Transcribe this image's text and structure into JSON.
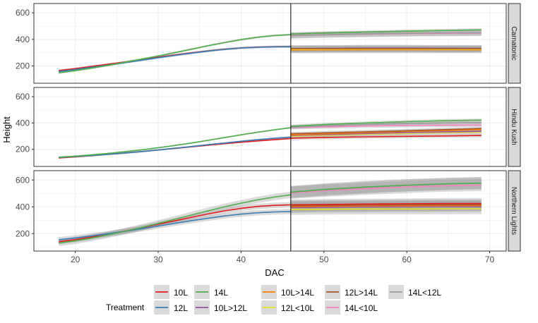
{
  "chart_data": {
    "type": "line",
    "xlabel": "DAC",
    "ylabel": "Height",
    "xlim": [
      15,
      72
    ],
    "ylim": [
      70,
      670
    ],
    "x_ticks": [
      20,
      30,
      40,
      50,
      60,
      70
    ],
    "y_ticks": [
      200,
      400,
      600
    ],
    "vline_x": 46,
    "legend": {
      "title": "Treatment",
      "position": "bottom"
    },
    "treatments": [
      {
        "name": "10L",
        "color": "#e41a1c"
      },
      {
        "name": "12L",
        "color": "#377eb8"
      },
      {
        "name": "14L",
        "color": "#4daf4a"
      },
      {
        "name": "10L>12L",
        "color": "#984ea3"
      },
      {
        "name": "10L>14L",
        "color": "#ff7f00"
      },
      {
        "name": "12L<10L",
        "color": "#e6e62a"
      },
      {
        "name": "12L>14L",
        "color": "#a65628"
      },
      {
        "name": "14L<10L",
        "color": "#f781bf"
      },
      {
        "name": "14L<12L",
        "color": "#999999"
      }
    ],
    "panels": [
      {
        "strip": "Carnatonic",
        "series": [
          {
            "name": "10L",
            "x": [
              18,
              20,
              22,
              24,
              26,
              28,
              30,
              32,
              34,
              36,
              38,
              40,
              42,
              44,
              46
            ],
            "y": [
              165,
              180,
              197,
              213,
              230,
              248,
              266,
              283,
              299,
              313,
              326,
              336,
              342,
              345,
              346
            ],
            "ci": 8
          },
          {
            "name": "12L",
            "x": [
              18,
              20,
              22,
              24,
              26,
              28,
              30,
              32,
              34,
              36,
              38,
              40,
              42,
              44,
              46
            ],
            "y": [
              158,
              173,
              190,
              207,
              225,
              243,
              262,
              279,
              296,
              312,
              325,
              335,
              341,
              344,
              345
            ],
            "ci": 8
          },
          {
            "name": "14L",
            "x": [
              18,
              20,
              22,
              24,
              26,
              28,
              30,
              32,
              34,
              36,
              38,
              40,
              42,
              44,
              46
            ],
            "y": [
              148,
              165,
              184,
              205,
              228,
              251,
              275,
              300,
              326,
              352,
              376,
              398,
              416,
              429,
              436
            ],
            "ci": 8
          },
          {
            "name": "10L>12L",
            "x": [
              46,
              50,
              55,
              60,
              65,
              69
            ],
            "y": [
              330,
              332,
              334,
              334,
              333,
              332
            ],
            "ci": 25
          },
          {
            "name": "10L>14L",
            "x": [
              46,
              50,
              55,
              60,
              65,
              69
            ],
            "y": [
              320,
              321,
              322,
              322,
              322,
              321
            ],
            "ci": 25
          },
          {
            "name": "12L<10L",
            "x": [
              46,
              50,
              55,
              60,
              65,
              69
            ],
            "y": [
              325,
              326,
              327,
              327,
              326,
              326
            ],
            "ci": 25
          },
          {
            "name": "12L>14L",
            "x": [
              46,
              50,
              55,
              60,
              65,
              69
            ],
            "y": [
              330,
              330,
              331,
              331,
              330,
              330
            ],
            "ci": 25
          },
          {
            "name": "14L<10L",
            "x": [
              46,
              50,
              55,
              60,
              65,
              69
            ],
            "y": [
              430,
              435,
              440,
              444,
              446,
              447
            ],
            "ci": 22
          },
          {
            "name": "14L<12L",
            "x": [
              46,
              50,
              55,
              60,
              65,
              69
            ],
            "y": [
              428,
              435,
              441,
              446,
              449,
              450
            ],
            "ci": 22
          },
          {
            "name": "14L",
            "x": [
              46,
              50,
              55,
              60,
              65,
              69
            ],
            "y": [
              440,
              448,
              455,
              462,
              468,
              472
            ],
            "ci": 12
          }
        ]
      },
      {
        "strip": "Hindu Kush",
        "series": [
          {
            "name": "10L",
            "x": [
              18,
              20,
              22,
              24,
              26,
              28,
              30,
              32,
              34,
              36,
              38,
              40,
              42,
              44,
              46
            ],
            "y": [
              135,
              143,
              152,
              162,
              172,
              183,
              195,
              207,
              219,
              231,
              243,
              254,
              264,
              273,
              282
            ],
            "ci": 6
          },
          {
            "name": "12L",
            "x": [
              18,
              20,
              22,
              24,
              26,
              28,
              30,
              32,
              34,
              36,
              38,
              40,
              42,
              44,
              46
            ],
            "y": [
              138,
              145,
              153,
              162,
              172,
              183,
              195,
              208,
              221,
              235,
              248,
              261,
              273,
              284,
              293
            ],
            "ci": 6
          },
          {
            "name": "14L",
            "x": [
              18,
              20,
              22,
              24,
              26,
              28,
              30,
              32,
              34,
              36,
              38,
              40,
              42,
              44,
              46
            ],
            "y": [
              140,
              148,
              158,
              169,
              182,
              196,
              212,
              229,
              248,
              268,
              289,
              310,
              330,
              348,
              364
            ],
            "ci": 6
          },
          {
            "name": "10L",
            "x": [
              46,
              50,
              55,
              60,
              65,
              69
            ],
            "y": [
              285,
              290,
              295,
              299,
              302,
              305
            ],
            "ci": 14
          },
          {
            "name": "12L<10L",
            "x": [
              46,
              50,
              55,
              60,
              65,
              69
            ],
            "y": [
              300,
              307,
              315,
              321,
              327,
              330
            ],
            "ci": 14
          },
          {
            "name": "10L>12L",
            "x": [
              46,
              50,
              55,
              60,
              65,
              69
            ],
            "y": [
              305,
              312,
              320,
              327,
              333,
              337
            ],
            "ci": 14
          },
          {
            "name": "10L>14L",
            "x": [
              46,
              50,
              55,
              60,
              65,
              69
            ],
            "y": [
              310,
              318,
              327,
              336,
              344,
              350
            ],
            "ci": 14
          },
          {
            "name": "12L>14L",
            "x": [
              46,
              50,
              55,
              60,
              65,
              69
            ],
            "y": [
              318,
              325,
              333,
              341,
              350,
              358
            ],
            "ci": 14
          },
          {
            "name": "14L<10L",
            "x": [
              46,
              50,
              55,
              60,
              65,
              69
            ],
            "y": [
              365,
              371,
              377,
              381,
              383,
              384
            ],
            "ci": 14
          },
          {
            "name": "14L<12L",
            "x": [
              46,
              50,
              55,
              60,
              65,
              69
            ],
            "y": [
              368,
              378,
              388,
              396,
              401,
              404
            ],
            "ci": 14
          },
          {
            "name": "14L",
            "x": [
              46,
              50,
              55,
              60,
              65,
              69
            ],
            "y": [
              375,
              388,
              400,
              410,
              418,
              422
            ],
            "ci": 12
          }
        ]
      },
      {
        "strip": "Northern Lights",
        "series": [
          {
            "name": "10L",
            "x": [
              18,
              20,
              22,
              24,
              26,
              28,
              30,
              32,
              34,
              36,
              38,
              40,
              42,
              44,
              46
            ],
            "y": [
              140,
              156,
              175,
              196,
              219,
              244,
              270,
              296,
              322,
              347,
              370,
              389,
              403,
              411,
              415
            ],
            "ci": 20
          },
          {
            "name": "12L",
            "x": [
              18,
              20,
              22,
              24,
              26,
              28,
              30,
              32,
              34,
              36,
              38,
              40,
              42,
              44,
              46
            ],
            "y": [
              155,
              168,
              183,
              200,
              218,
              237,
              257,
              277,
              297,
              315,
              332,
              346,
              356,
              362,
              365
            ],
            "ci": 20
          },
          {
            "name": "14L",
            "x": [
              18,
              20,
              22,
              24,
              26,
              28,
              30,
              32,
              34,
              36,
              38,
              40,
              42,
              44,
              46
            ],
            "y": [
              130,
              147,
              168,
              192,
              218,
              246,
              276,
              307,
              339,
              370,
              400,
              427,
              452,
              473,
              490
            ],
            "ci": 24
          },
          {
            "name": "10L",
            "x": [
              46,
              50,
              55,
              60,
              65,
              69
            ],
            "y": [
              415,
              418,
              421,
              423,
              425,
              425
            ],
            "ci": 40
          },
          {
            "name": "12L<10L",
            "x": [
              46,
              50,
              55,
              60,
              65,
              69
            ],
            "y": [
              380,
              382,
              384,
              384,
              385,
              385
            ],
            "ci": 40
          },
          {
            "name": "10L>12L",
            "x": [
              46,
              50,
              55,
              60,
              65,
              69
            ],
            "y": [
              395,
              398,
              400,
              402,
              403,
              403
            ],
            "ci": 40
          },
          {
            "name": "10L>14L",
            "x": [
              46,
              50,
              55,
              60,
              65,
              69
            ],
            "y": [
              402,
              405,
              407,
              408,
              409,
              410
            ],
            "ci": 40
          },
          {
            "name": "12L>14L",
            "x": [
              46,
              50,
              55,
              60,
              65,
              69
            ],
            "y": [
              408,
              410,
              412,
              414,
              415,
              416
            ],
            "ci": 40
          },
          {
            "name": "14L<10L",
            "x": [
              46,
              50,
              55,
              60,
              65,
              69
            ],
            "y": [
              505,
              520,
              535,
              548,
              558,
              562
            ],
            "ci": 45
          },
          {
            "name": "14L<12L",
            "x": [
              46,
              50,
              55,
              60,
              65,
              69
            ],
            "y": [
              510,
              527,
              545,
              560,
              571,
              576
            ],
            "ci": 45
          },
          {
            "name": "14L",
            "x": [
              46,
              50,
              55,
              60,
              65,
              69
            ],
            "y": [
              510,
              530,
              548,
              562,
              572,
              578
            ],
            "ci": 45
          }
        ]
      }
    ]
  }
}
